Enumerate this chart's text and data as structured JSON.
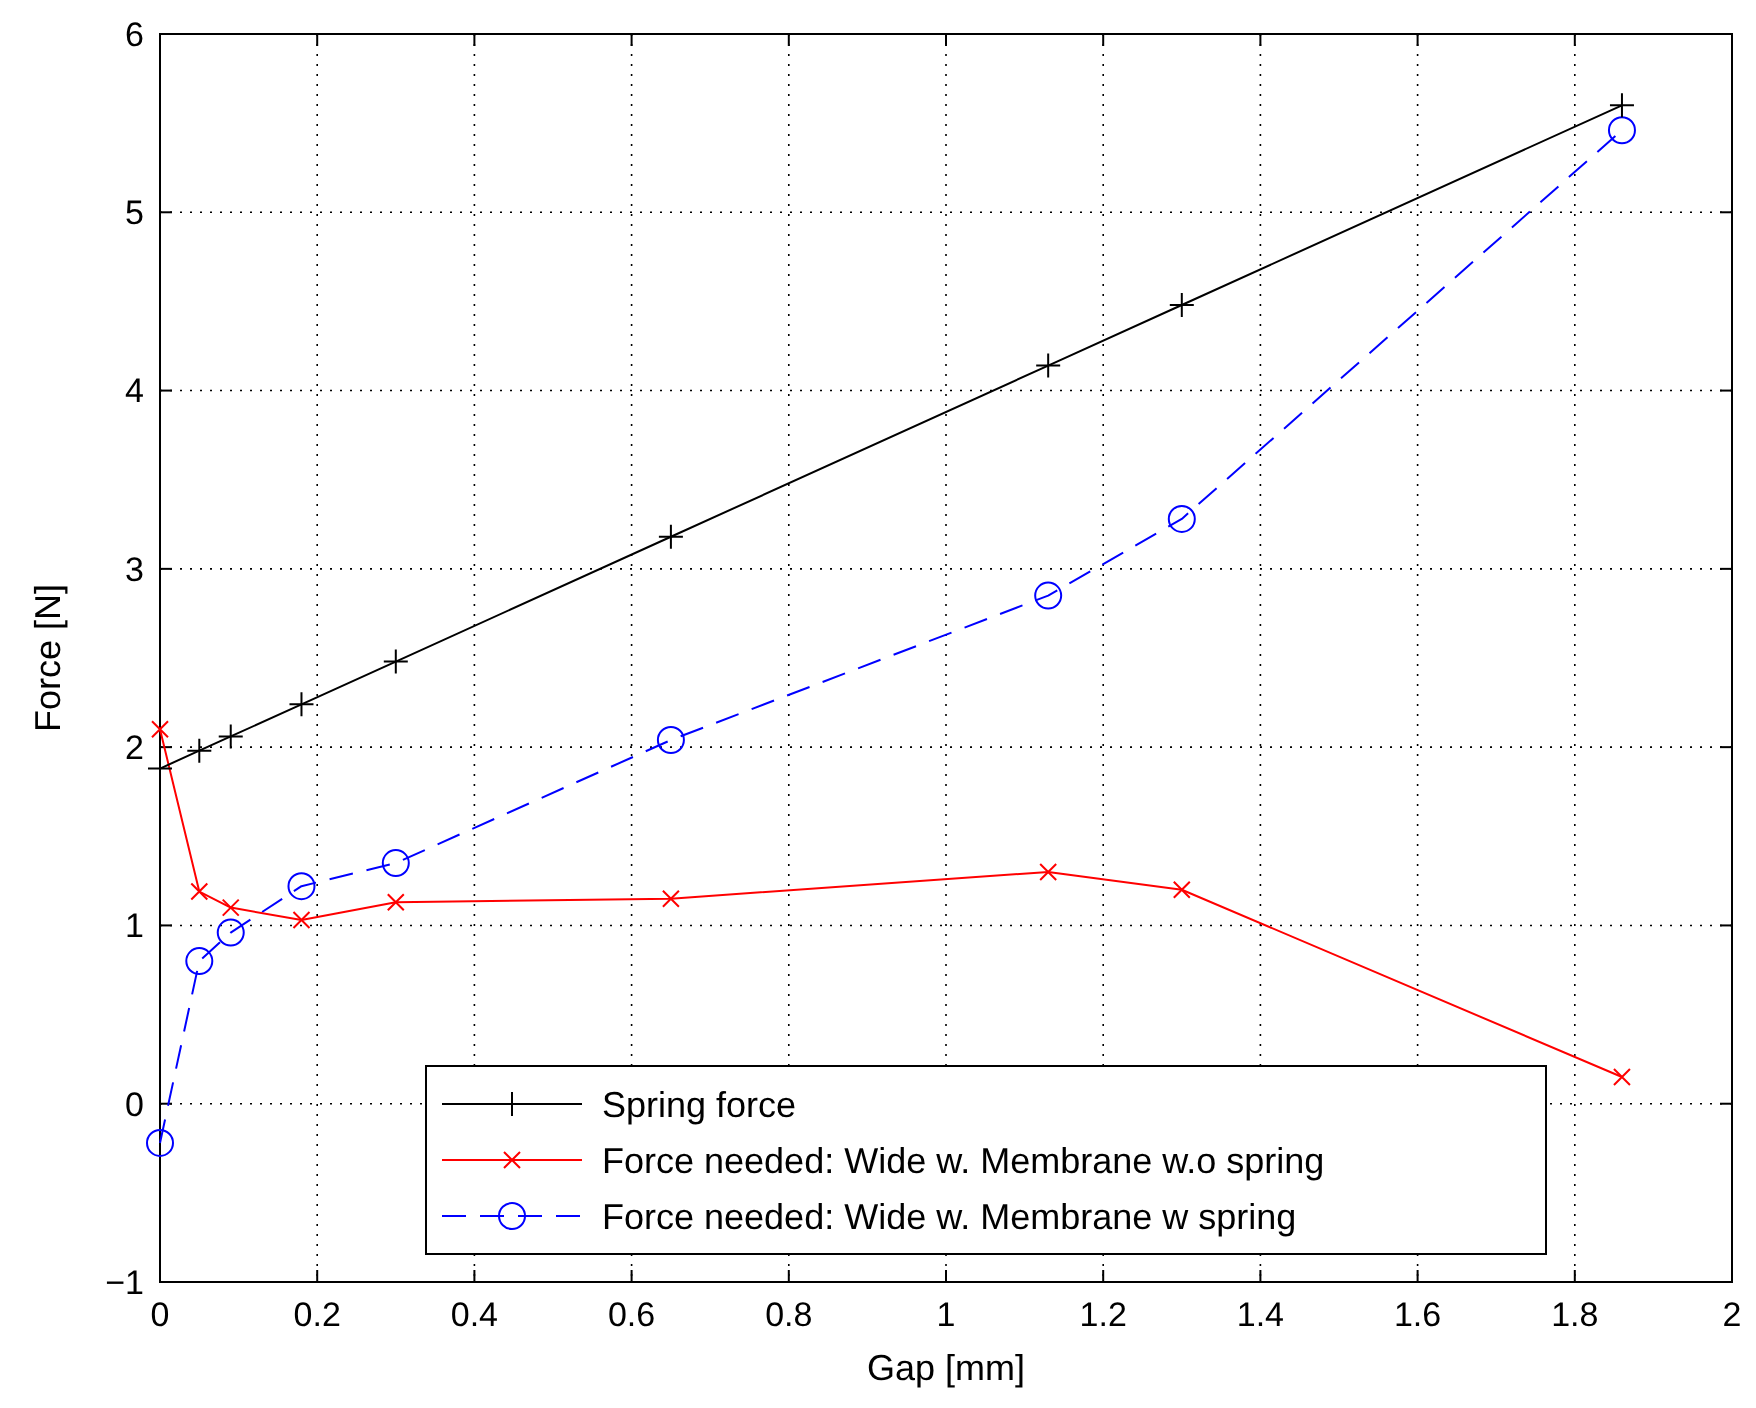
{
  "chart_data": {
    "type": "line",
    "xlabel": "Gap [mm]",
    "ylabel": "Force [N]",
    "x": [
      0,
      0.05,
      0.09,
      0.18,
      0.3,
      0.65,
      1.13,
      1.3,
      1.86
    ],
    "series": [
      {
        "name": "Spring force",
        "color": "#000000",
        "marker": "plus",
        "line_style": "solid",
        "values": [
          1.88,
          1.98,
          2.06,
          2.24,
          2.48,
          3.18,
          4.14,
          4.48,
          5.6
        ]
      },
      {
        "name": "Force needed: Wide w. Membrane w.o spring",
        "color": "#ff0000",
        "marker": "cross",
        "line_style": "solid",
        "values": [
          2.1,
          1.19,
          1.1,
          1.03,
          1.13,
          1.15,
          1.3,
          1.2,
          0.15
        ]
      },
      {
        "name": "Force needed: Wide w. Membrane w spring",
        "color": "#0000ff",
        "marker": "circle",
        "line_style": "dashed",
        "values": [
          -0.22,
          0.8,
          0.96,
          1.22,
          1.35,
          2.04,
          2.85,
          3.28,
          5.46
        ]
      }
    ],
    "xlim": [
      0,
      2
    ],
    "xticks": [
      0,
      0.2,
      0.4,
      0.6,
      0.8,
      1,
      1.2,
      1.4,
      1.6,
      1.8,
      2
    ],
    "ylim": [
      -1,
      6
    ],
    "yticks": [
      {
        "value": -1,
        "label": "−1"
      },
      0,
      1,
      2,
      3,
      4,
      5,
      6
    ],
    "grid": true,
    "legend": "bottom"
  }
}
